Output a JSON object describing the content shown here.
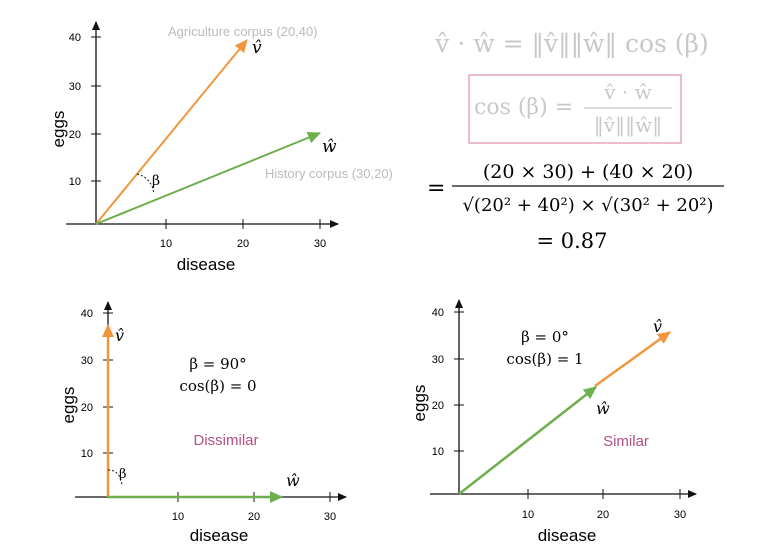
{
  "colors": {
    "v_vector": "#F0973E",
    "w_vector": "#6DAE4F",
    "axis": "#111111",
    "annotation_gray": "#BBBBBB",
    "formula_gray": "#C8C8C8",
    "box_pink": "#E6A7B6",
    "label_purple": "#B24F83"
  },
  "charts": {
    "top": {
      "ylabel": "eggs",
      "xlabel": "disease",
      "x_ticks": [
        "10",
        "20",
        "30"
      ],
      "y_ticks": [
        "10",
        "20",
        "30",
        "40"
      ],
      "v_label": "v̂",
      "w_label": "ŵ",
      "beta_label": "β",
      "agri_label": "Agriculture corpus (20,40)",
      "hist_label": "History corpus (30,20)"
    },
    "bottom_left": {
      "ylabel": "eggs",
      "xlabel": "disease",
      "x_ticks": [
        "10",
        "20",
        "30"
      ],
      "y_ticks": [
        "10",
        "20",
        "30",
        "40"
      ],
      "v_label": "v̂",
      "w_label": "ŵ",
      "beta_label": "β",
      "angle_text": "β = 90°",
      "cos_text": "cos(β) = 0",
      "verdict": "Dissimilar"
    },
    "bottom_right": {
      "ylabel": "eggs",
      "xlabel": "disease",
      "x_ticks": [
        "10",
        "20",
        "30"
      ],
      "y_ticks": [
        "10",
        "20",
        "30",
        "40"
      ],
      "v_label": "v̂",
      "w_label": "ŵ",
      "angle_text": "β = 0°",
      "cos_text": "cos(β) = 1",
      "verdict": "Similar"
    }
  },
  "formula": {
    "line1": "v̂ · ŵ = ‖v̂‖‖ŵ‖ cos (β)",
    "boxed_lhs": "cos (β) =",
    "boxed_num": "v̂ · ŵ",
    "boxed_den": "‖v̂‖‖ŵ‖",
    "eq_sign": "=",
    "num": "(20 × 30) + (40 × 20)",
    "den": "√(20² + 40²) × √(30² + 20²)",
    "result": "= 0.87"
  },
  "chart_data": [
    {
      "type": "scatter",
      "title": "",
      "xlabel": "disease",
      "ylabel": "eggs",
      "xlim": [
        0,
        30
      ],
      "ylim": [
        0,
        40
      ],
      "series": [
        {
          "name": "Agriculture corpus (20,40)",
          "x": [
            0,
            20
          ],
          "y": [
            0,
            40
          ]
        },
        {
          "name": "History corpus (30,20)",
          "x": [
            0,
            30
          ],
          "y": [
            0,
            20
          ]
        }
      ]
    },
    {
      "type": "scatter",
      "title": "",
      "xlabel": "disease",
      "ylabel": "eggs",
      "xlim": [
        0,
        30
      ],
      "ylim": [
        0,
        40
      ],
      "series": [
        {
          "x": [
            0,
            0
          ],
          "y": [
            0,
            40
          ]
        },
        {
          "x": [
            0,
            25
          ],
          "y": [
            0,
            0
          ]
        }
      ]
    },
    {
      "type": "scatter",
      "title": "",
      "xlabel": "disease",
      "ylabel": "eggs",
      "xlim": [
        0,
        30
      ],
      "ylim": [
        0,
        40
      ],
      "series": [
        {
          "x": [
            0,
            19
          ],
          "y": [
            0,
            23
          ]
        },
        {
          "x": [
            19,
            28
          ],
          "y": [
            23,
            35
          ]
        }
      ]
    }
  ]
}
